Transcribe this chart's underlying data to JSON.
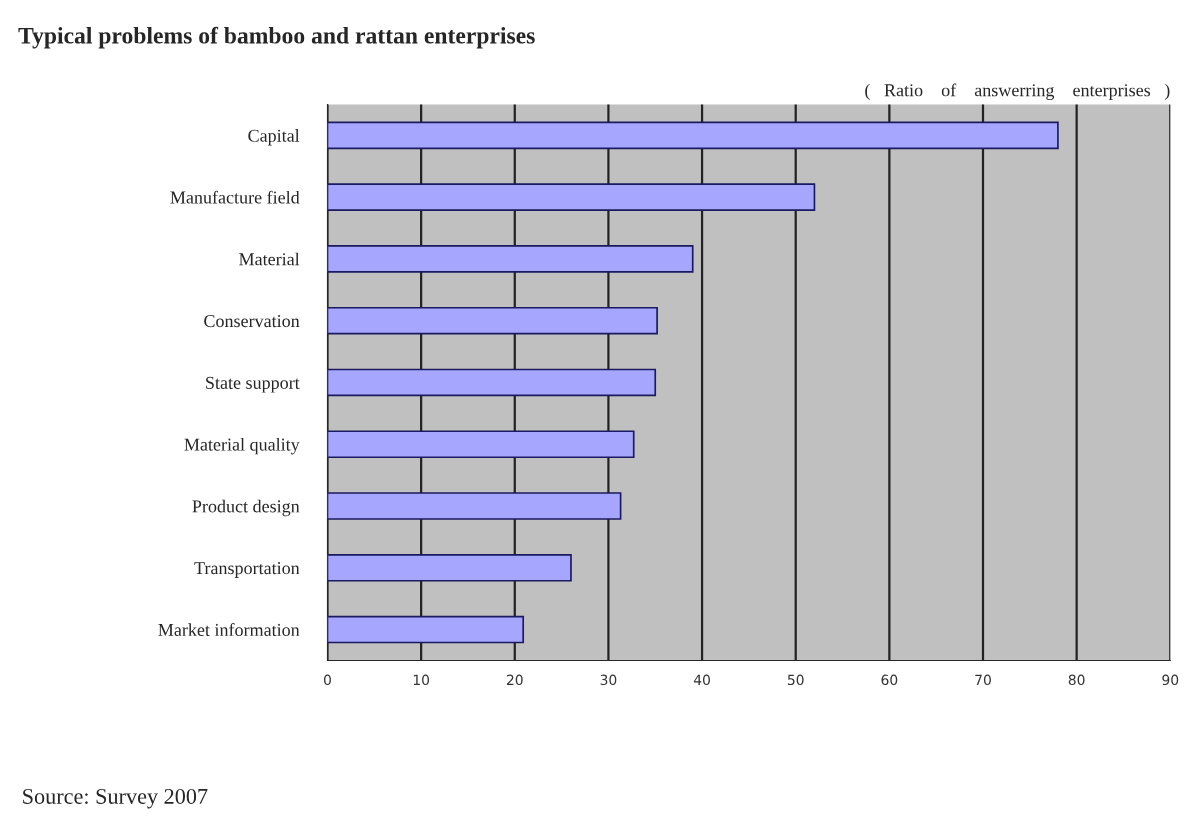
{
  "chart_data": {
    "type": "bar",
    "orientation": "horizontal",
    "title": "Typical problems of bamboo and rattan enterprises",
    "xlabel": "(   Ratio    of    answerring    enterprises   )",
    "categories": [
      "Capital",
      "Manufacture field",
      "Material",
      "Conservation",
      "State support",
      "Material quality",
      "Product design",
      "Transportation",
      "Market information"
    ],
    "values": [
      78,
      52,
      39,
      35.2,
      35,
      32.7,
      31.3,
      26,
      20.9
    ],
    "color": "#a6a6ff",
    "xlim": [
      0,
      90
    ],
    "xticks": [
      0,
      10,
      20,
      30,
      40,
      50,
      60,
      70,
      80,
      90
    ],
    "grid": "x",
    "annotations": [
      "Source: Survey 2007"
    ]
  }
}
